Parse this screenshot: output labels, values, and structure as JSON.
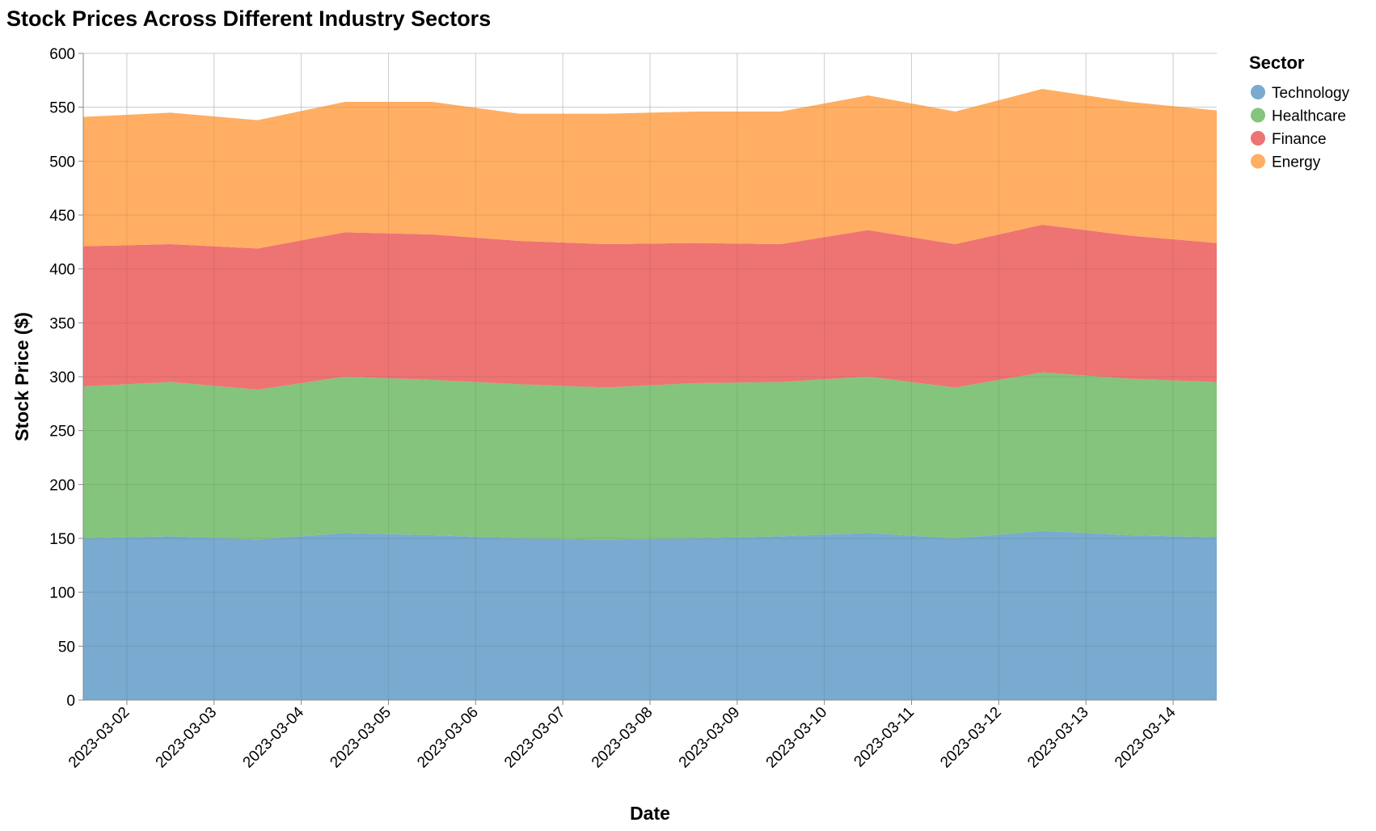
{
  "chart_data": {
    "type": "area",
    "stacked": true,
    "title": "Stock Prices Across Different Industry Sectors",
    "xlabel": "Date",
    "ylabel": "Stock Price ($)",
    "ylim": [
      0,
      600
    ],
    "yticks": [
      0,
      50,
      100,
      150,
      200,
      250,
      300,
      350,
      400,
      450,
      500,
      550,
      600
    ],
    "xlim": [
      "2023-03-01T12:00",
      "2023-03-14T12:00"
    ],
    "xticks": [
      "2023-03-02",
      "2023-03-03",
      "2023-03-04",
      "2023-03-05",
      "2023-03-06",
      "2023-03-07",
      "2023-03-08",
      "2023-03-09",
      "2023-03-10",
      "2023-03-11",
      "2023-03-12",
      "2023-03-13",
      "2023-03-14"
    ],
    "x": [
      "2023-03-01T12:00",
      "2023-03-02T12:00",
      "2023-03-03T12:00",
      "2023-03-04T12:00",
      "2023-03-05T12:00",
      "2023-03-06T12:00",
      "2023-03-07T12:00",
      "2023-03-08T12:00",
      "2023-03-09T12:00",
      "2023-03-10T12:00",
      "2023-03-11T12:00",
      "2023-03-12T12:00",
      "2023-03-13T12:00",
      "2023-03-14T12:00"
    ],
    "grid": true,
    "legend": {
      "title": "Sector",
      "position": "top-right"
    },
    "series": [
      {
        "name": "Technology",
        "color": "#79aacf",
        "values": [
          150,
          152,
          149,
          155,
          153,
          150,
          149,
          150,
          152,
          155,
          150,
          157,
          153,
          151
        ]
      },
      {
        "name": "Healthcare",
        "color": "#84c47c",
        "values": [
          141,
          143,
          139,
          145,
          144,
          143,
          141,
          144,
          143,
          145,
          140,
          147,
          145,
          144
        ]
      },
      {
        "name": "Finance",
        "color": "#ee7373",
        "values": [
          130,
          128,
          131,
          134,
          135,
          133,
          133,
          130,
          128,
          136,
          133,
          137,
          133,
          129
        ]
      },
      {
        "name": "Energy",
        "color": "#ffae63",
        "values": [
          120,
          122,
          119,
          121,
          123,
          118,
          121,
          122,
          123,
          125,
          123,
          126,
          124,
          123
        ]
      }
    ]
  }
}
